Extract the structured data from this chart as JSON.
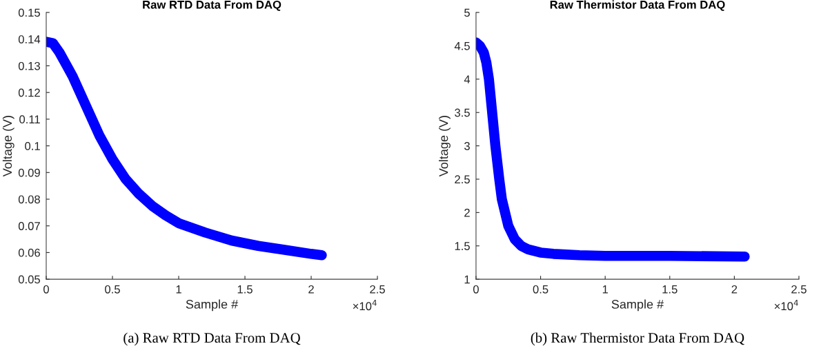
{
  "chart_data": [
    {
      "type": "line",
      "title": "Raw RTD Data From DAQ",
      "xlabel": "Sample #",
      "ylabel": "Voltage (V)",
      "annotations": [
        "×10$^{4}$",
        "(a) Raw RTD Data From DAQ"
      ],
      "x": [
        0,
        0.05,
        0.1,
        0.15,
        0.2,
        0.3,
        0.4,
        0.5,
        0.6,
        0.7,
        0.8,
        0.9,
        1.0,
        1.2,
        1.4,
        1.6,
        1.8,
        2.0,
        2.08
      ],
      "series": [
        {
          "color": "#0000ff",
          "values": [
            0.139,
            0.1385,
            0.135,
            0.1305,
            0.126,
            0.115,
            0.104,
            0.095,
            0.0875,
            0.082,
            0.0775,
            0.074,
            0.071,
            0.0675,
            0.0645,
            0.0625,
            0.061,
            0.0595,
            0.059
          ]
        }
      ],
      "xlim": [
        0,
        2.5
      ],
      "xticks": [
        0,
        0.5,
        1,
        1.5,
        2,
        2.5
      ],
      "ylim": [
        0.05,
        0.15
      ],
      "yticks": [
        0.05,
        0.06,
        0.07,
        0.08,
        0.09,
        0.1,
        0.11,
        0.12,
        0.13,
        0.14,
        0.15
      ],
      "grid": false,
      "legend": false,
      "line_style": "solid"
    },
    {
      "type": "line",
      "title": "Raw Thermistor Data From DAQ",
      "xlabel": "Sample #",
      "ylabel": "Voltage (V)",
      "annotations": [
        "×10$^{4}$",
        "(b) Raw Thermistor Data From DAQ"
      ],
      "x": [
        0,
        0.03,
        0.06,
        0.08,
        0.1,
        0.12,
        0.15,
        0.18,
        0.2,
        0.25,
        0.3,
        0.35,
        0.4,
        0.5,
        0.6,
        0.8,
        1.0,
        1.5,
        2.08
      ],
      "series": [
        {
          "color": "#0000ff",
          "values": [
            4.55,
            4.5,
            4.4,
            4.25,
            4.0,
            3.6,
            3.0,
            2.5,
            2.2,
            1.8,
            1.6,
            1.5,
            1.45,
            1.4,
            1.38,
            1.36,
            1.35,
            1.35,
            1.34
          ]
        }
      ],
      "xlim": [
        0,
        2.5
      ],
      "xticks": [
        0,
        0.5,
        1,
        1.5,
        2,
        2.5
      ],
      "ylim": [
        1,
        5
      ],
      "yticks": [
        1,
        1.5,
        2,
        2.5,
        3,
        3.5,
        4,
        4.5,
        5
      ],
      "grid": false,
      "legend": false,
      "line_style": "solid"
    }
  ]
}
